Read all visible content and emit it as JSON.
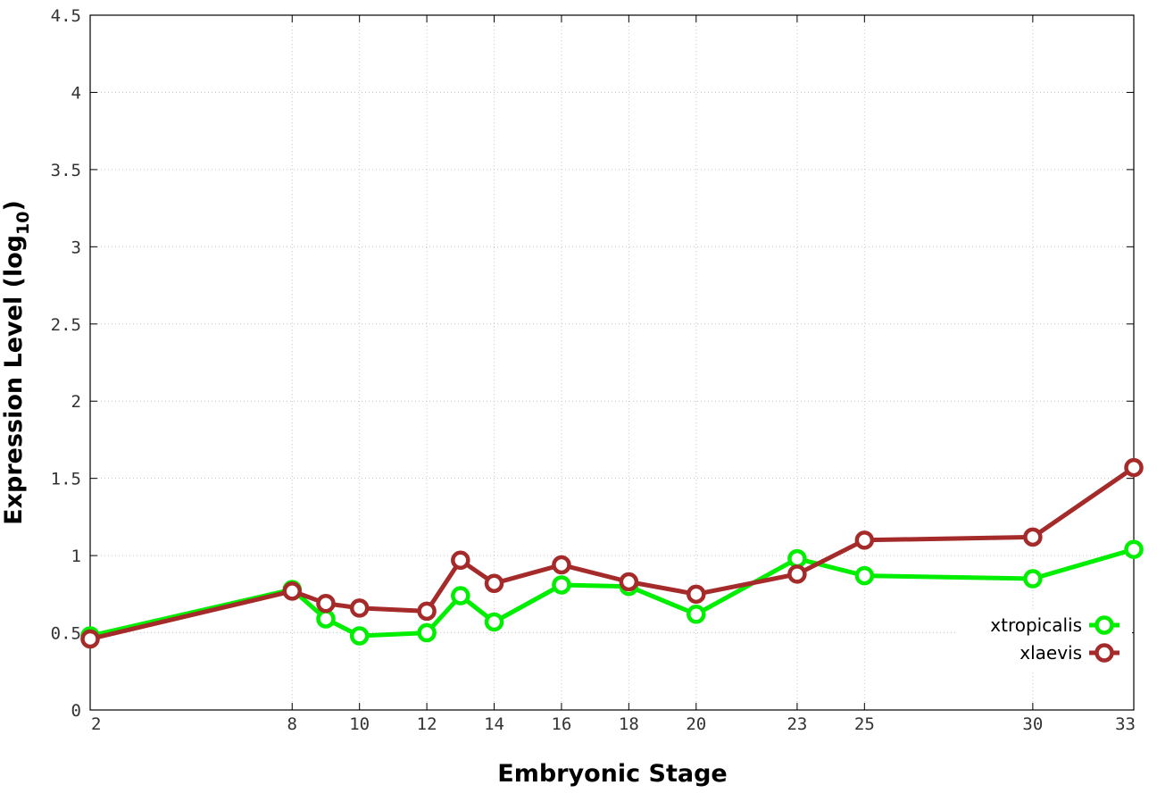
{
  "chart_data": {
    "type": "line",
    "xlabel": "Embryonic Stage",
    "ylabel": {
      "main": "Expression Level (log",
      "sub": "10",
      "close": ")"
    },
    "x_ticks": [
      2,
      8,
      10,
      12,
      14,
      16,
      18,
      20,
      23,
      25,
      30,
      33
    ],
    "y_ticks": [
      "0",
      "0.5",
      "1",
      "1.5",
      "2",
      "2.5",
      "3",
      "3.5",
      "4",
      "4.5"
    ],
    "xlim": [
      2,
      33
    ],
    "ylim": [
      0,
      4.5
    ],
    "grid": true,
    "legend_position": "bottom-right",
    "series": [
      {
        "name": "xtropicalis",
        "color": "#00ee00",
        "points": [
          {
            "x": 2,
            "y": 0.48
          },
          {
            "x": 8,
            "y": 0.78
          },
          {
            "x": 9,
            "y": 0.59
          },
          {
            "x": 10,
            "y": 0.48
          },
          {
            "x": 12,
            "y": 0.5
          },
          {
            "x": 13,
            "y": 0.74
          },
          {
            "x": 14,
            "y": 0.57
          },
          {
            "x": 16,
            "y": 0.81
          },
          {
            "x": 18,
            "y": 0.8
          },
          {
            "x": 20,
            "y": 0.62
          },
          {
            "x": 23,
            "y": 0.98
          },
          {
            "x": 25,
            "y": 0.87
          },
          {
            "x": 30,
            "y": 0.85
          },
          {
            "x": 33,
            "y": 1.04
          }
        ]
      },
      {
        "name": "xlaevis",
        "color": "#a52a2a",
        "points": [
          {
            "x": 2,
            "y": 0.46
          },
          {
            "x": 8,
            "y": 0.77
          },
          {
            "x": 9,
            "y": 0.69
          },
          {
            "x": 10,
            "y": 0.66
          },
          {
            "x": 12,
            "y": 0.64
          },
          {
            "x": 13,
            "y": 0.97
          },
          {
            "x": 14,
            "y": 0.82
          },
          {
            "x": 16,
            "y": 0.94
          },
          {
            "x": 18,
            "y": 0.83
          },
          {
            "x": 20,
            "y": 0.75
          },
          {
            "x": 23,
            "y": 0.88
          },
          {
            "x": 25,
            "y": 1.1
          },
          {
            "x": 30,
            "y": 1.12
          },
          {
            "x": 33,
            "y": 1.57
          }
        ]
      }
    ]
  }
}
